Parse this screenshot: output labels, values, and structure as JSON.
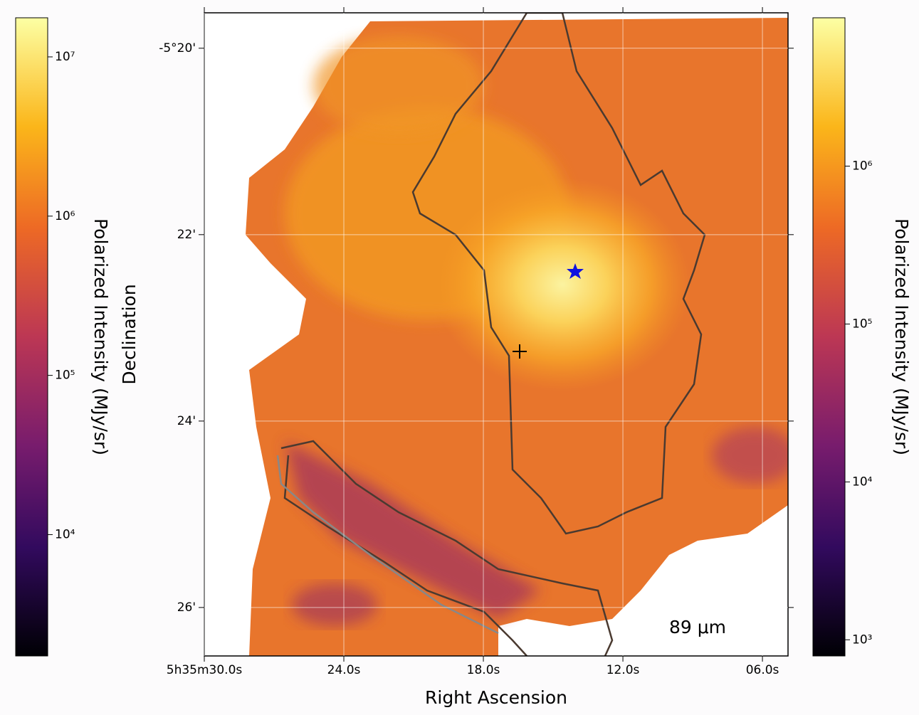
{
  "chart_data": {
    "type": "image",
    "xlabel": "Right Ascension",
    "ylabel": "Declination",
    "annotation": "89 μm",
    "xlim": [
      30,
      4.9
    ],
    "xticks": [
      {
        "value": 30,
        "label": "5h35m30.0s"
      },
      {
        "value": 24,
        "label": "24.0s"
      },
      {
        "value": 18,
        "label": "18.0s"
      },
      {
        "value": 12,
        "label": "12.0s"
      },
      {
        "value": 6,
        "label": "06.0s"
      }
    ],
    "ylim": [
      19.62,
      26.52
    ],
    "yticks": [
      {
        "value": 20,
        "label": "-5°20'"
      },
      {
        "value": 22,
        "label": "22'"
      },
      {
        "value": 24,
        "label": "24'"
      },
      {
        "value": 26,
        "label": "26'"
      }
    ],
    "grid": true,
    "colorbars": [
      {
        "label": "Polarized Intensity (MJy/sr)",
        "log": true,
        "lim": [
          1730,
          17600000
        ],
        "ticks": [
          {
            "value": 10000000,
            "label": "10⁷"
          },
          {
            "value": 1000000,
            "label": "10⁶"
          },
          {
            "value": 100000,
            "label": "10⁵"
          },
          {
            "value": 10000,
            "label": "10⁴"
          }
        ]
      },
      {
        "label": "Polarized Intensity (MJy/sr)",
        "log": true,
        "lim": [
          790,
          8700000
        ],
        "ticks": [
          {
            "value": 1000000,
            "label": "10⁶"
          },
          {
            "value": 100000,
            "label": "10⁵"
          },
          {
            "value": 10000,
            "label": "10⁴"
          },
          {
            "value": 1000,
            "label": "10³"
          }
        ]
      }
    ]
  }
}
